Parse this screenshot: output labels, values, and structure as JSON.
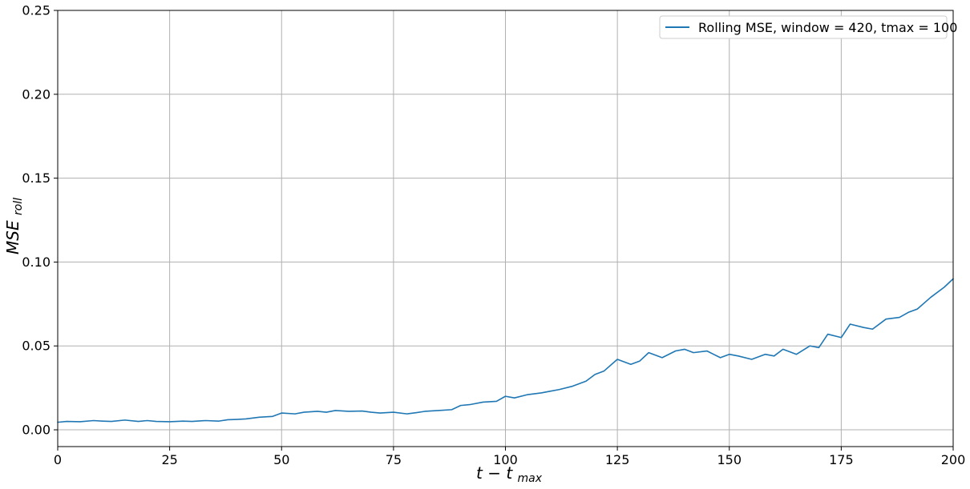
{
  "chart_data": {
    "type": "line",
    "title": "",
    "xlabel_main": "t − t",
    "xlabel_sub": "max",
    "ylabel_main": "MSE",
    "ylabel_sub": "roll",
    "xlim": [
      0,
      200
    ],
    "ylim": [
      -0.01,
      0.25
    ],
    "x_ticks": [
      0,
      25,
      50,
      75,
      100,
      125,
      150,
      175,
      200
    ],
    "y_ticks": [
      0.0,
      0.05,
      0.1,
      0.15,
      0.2,
      0.25
    ],
    "x_tick_labels": [
      "0",
      "25",
      "50",
      "75",
      "100",
      "125",
      "150",
      "175",
      "200"
    ],
    "y_tick_labels": [
      "0.00",
      "0.05",
      "0.10",
      "0.15",
      "0.20",
      "0.25"
    ],
    "grid": true,
    "legend_position": "top-right",
    "series": [
      {
        "name": "Rolling MSE, window = 420, tmax = 100",
        "color": "#1f77b4",
        "x": [
          0,
          2,
          5,
          8,
          10,
          12,
          15,
          18,
          20,
          22,
          25,
          28,
          30,
          33,
          36,
          38,
          40,
          42,
          45,
          48,
          50,
          53,
          55,
          58,
          60,
          62,
          65,
          68,
          70,
          72,
          75,
          78,
          80,
          82,
          85,
          88,
          90,
          92,
          95,
          98,
          100,
          102,
          105,
          108,
          110,
          112,
          115,
          118,
          120,
          122,
          125,
          128,
          130,
          132,
          135,
          138,
          140,
          142,
          145,
          148,
          150,
          152,
          155,
          158,
          160,
          162,
          165,
          168,
          170,
          172,
          175,
          177,
          180,
          182,
          185,
          188,
          190,
          192,
          195,
          198,
          200
        ],
        "y": [
          0.0045,
          0.005,
          0.0048,
          0.0055,
          0.0052,
          0.005,
          0.0058,
          0.005,
          0.0055,
          0.005,
          0.0048,
          0.0052,
          0.005,
          0.0055,
          0.0052,
          0.006,
          0.0062,
          0.0065,
          0.0075,
          0.008,
          0.01,
          0.0095,
          0.0105,
          0.011,
          0.0105,
          0.0115,
          0.011,
          0.0112,
          0.0105,
          0.01,
          0.0105,
          0.0095,
          0.0102,
          0.011,
          0.0115,
          0.012,
          0.0145,
          0.015,
          0.0165,
          0.017,
          0.02,
          0.019,
          0.021,
          0.022,
          0.023,
          0.024,
          0.026,
          0.029,
          0.033,
          0.035,
          0.042,
          0.039,
          0.041,
          0.046,
          0.043,
          0.047,
          0.048,
          0.046,
          0.047,
          0.043,
          0.045,
          0.044,
          0.042,
          0.045,
          0.044,
          0.048,
          0.045,
          0.05,
          0.049,
          0.057,
          0.055,
          0.063,
          0.061,
          0.06,
          0.066,
          0.067,
          0.07,
          0.072,
          0.079,
          0.085,
          0.09
        ]
      }
    ]
  }
}
